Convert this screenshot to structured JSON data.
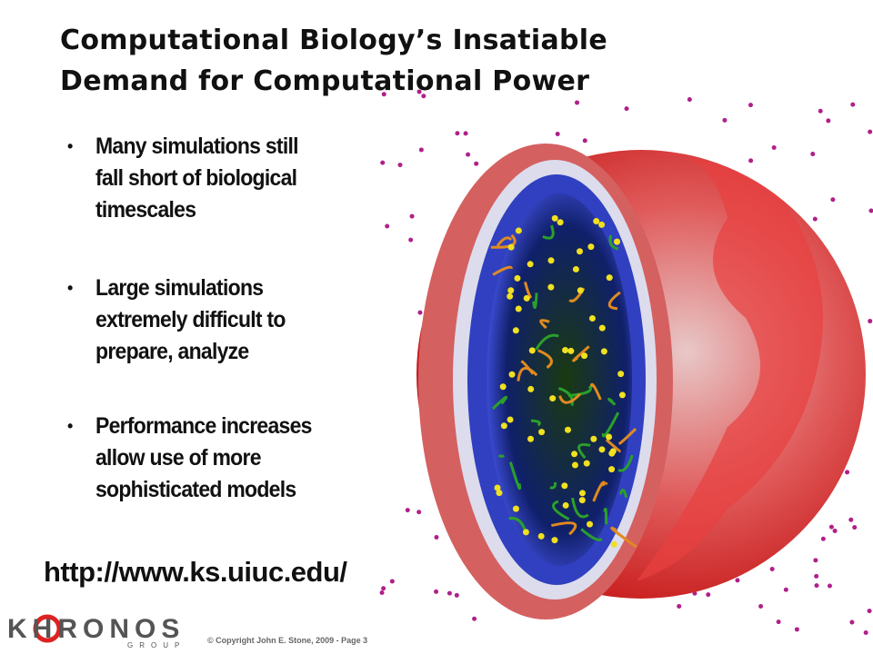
{
  "title": [
    "Computational Biology’s Insatiable",
    "Demand for Computational Power"
  ],
  "bullets": [
    [
      "Many simulations still",
      "fall short of biological",
      "timescales"
    ],
    [
      "Large simulations",
      "extremely difficult to",
      "prepare, analyze"
    ],
    [
      "Performance increases",
      "allow use of more",
      "sophisticated models"
    ]
  ],
  "url": "http://www.ks.uiuc.edu/",
  "logo": {
    "name": "KHRONOS",
    "sub": "GROUP"
  },
  "footer": "© Copyright John E. Stone, 2009 - Page 3"
}
